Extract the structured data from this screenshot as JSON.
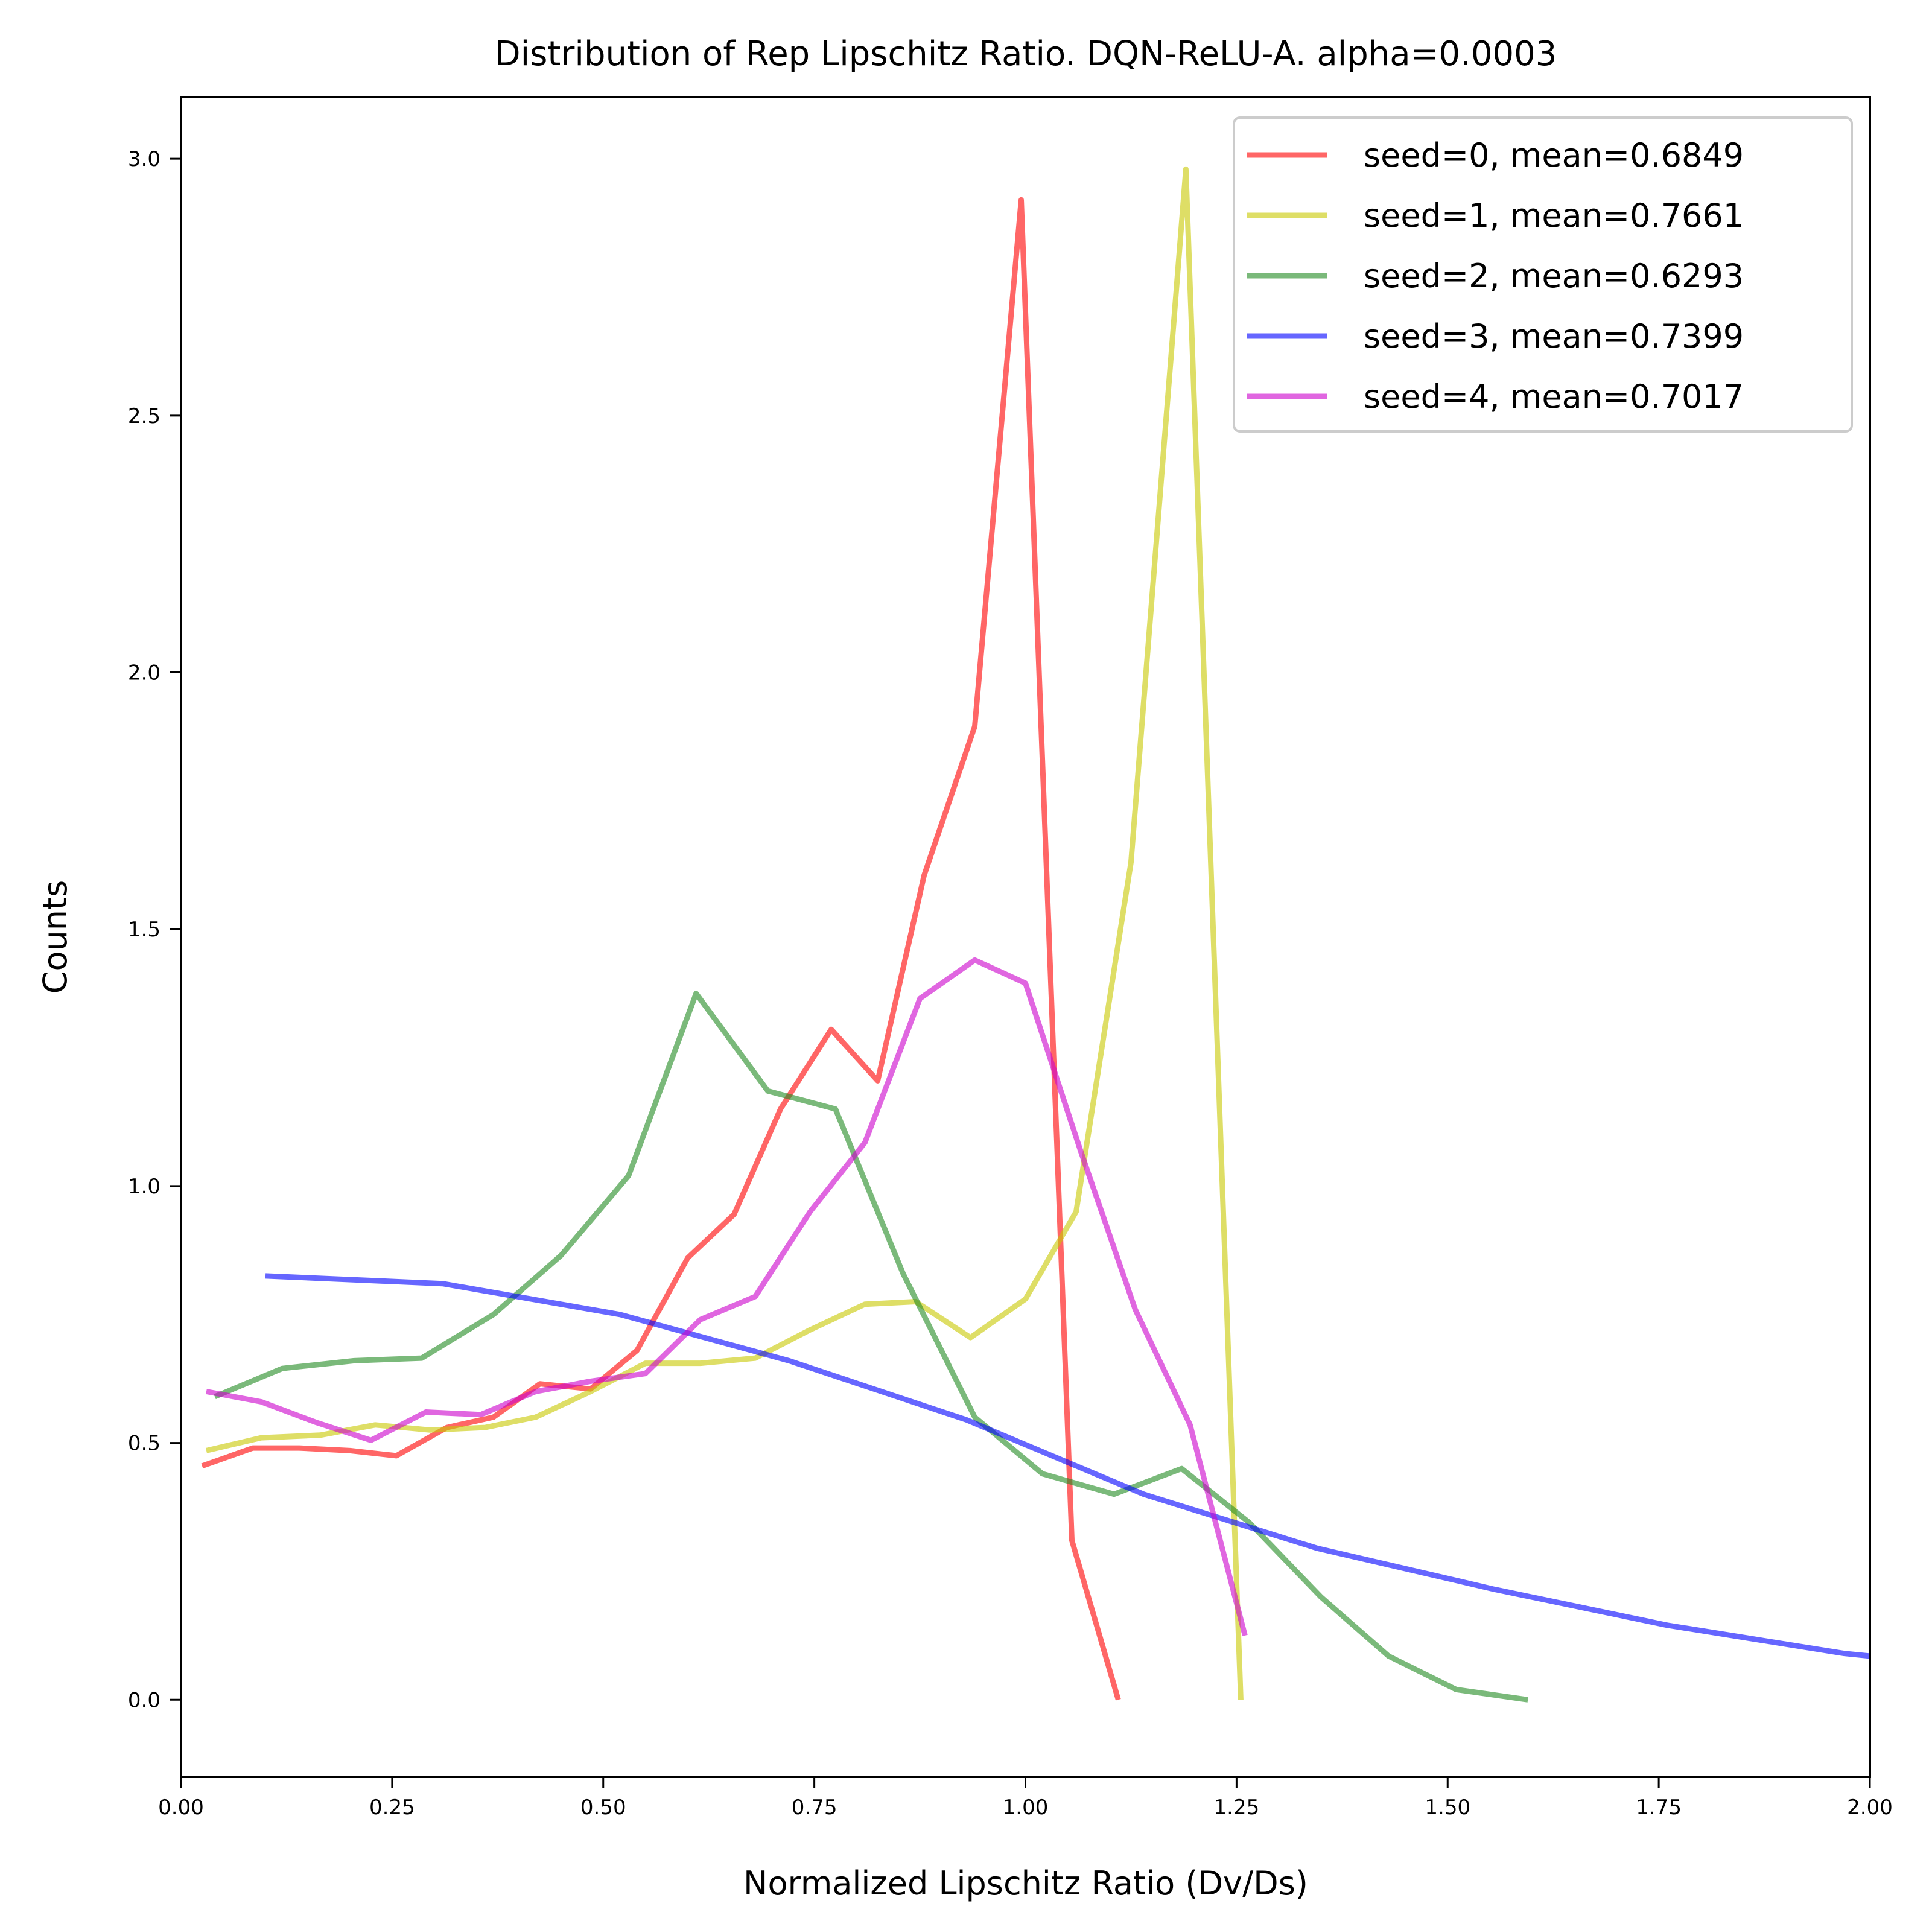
{
  "chart_data": {
    "type": "line",
    "title": "Distribution of Rep Lipschitz Ratio. DQN-ReLU-A. alpha=0.0003",
    "xlabel": "Normalized Lipschitz Ratio (Dv/Ds)",
    "ylabel": "Counts",
    "xlim": [
      0,
      2
    ],
    "ylim": [
      -0.15,
      3.12
    ],
    "x_ticks": [
      0,
      0.25,
      0.5,
      0.75,
      1.0,
      1.25,
      1.5,
      1.75,
      2.0
    ],
    "x_tick_labels": [
      "0.00",
      "0.25",
      "0.50",
      "0.75",
      "1.00",
      "1.25",
      "1.50",
      "1.75",
      "2.00"
    ],
    "y_ticks": [
      0,
      0.5,
      1.0,
      1.5,
      2.0,
      2.5,
      3.0
    ],
    "y_tick_labels": [
      "0.0",
      "0.5",
      "1.0",
      "1.5",
      "2.0",
      "2.5",
      "3.0"
    ],
    "grid": false,
    "legend_position": "top-right",
    "series": [
      {
        "name": "seed=0, mean=0.6849",
        "color": "#ff0000",
        "x": [
          0.025,
          0.085,
          0.14,
          0.2,
          0.255,
          0.315,
          0.37,
          0.425,
          0.485,
          0.54,
          0.6,
          0.655,
          0.71,
          0.77,
          0.825,
          0.88,
          0.94,
          0.995,
          1.055,
          1.11
        ],
        "y": [
          0.455,
          0.49,
          0.49,
          0.485,
          0.475,
          0.53,
          0.55,
          0.615,
          0.605,
          0.68,
          0.86,
          0.945,
          1.15,
          1.305,
          1.205,
          1.605,
          1.895,
          2.92,
          0.31,
          0.0
        ]
      },
      {
        "name": "seed=1, mean=0.7661",
        "color": "#c8c800",
        "x": [
          0.03,
          0.095,
          0.165,
          0.23,
          0.295,
          0.36,
          0.42,
          0.485,
          0.55,
          0.615,
          0.68,
          0.745,
          0.81,
          0.87,
          0.935,
          1.0,
          1.06,
          1.125,
          1.19,
          1.255
        ],
        "y": [
          0.485,
          0.51,
          0.515,
          0.535,
          0.525,
          0.53,
          0.55,
          0.6,
          0.655,
          0.655,
          0.665,
          0.72,
          0.77,
          0.775,
          0.705,
          0.78,
          0.95,
          1.63,
          2.98,
          0.0
        ]
      },
      {
        "name": "seed=2, mean=0.6293",
        "color": "#228b22",
        "x": [
          0.04,
          0.12,
          0.205,
          0.285,
          0.37,
          0.45,
          0.53,
          0.61,
          0.695,
          0.775,
          0.855,
          0.94,
          1.02,
          1.105,
          1.185,
          1.265,
          1.35,
          1.43,
          1.51,
          1.595
        ],
        "y": [
          0.59,
          0.645,
          0.66,
          0.665,
          0.75,
          0.865,
          1.02,
          1.375,
          1.185,
          1.15,
          0.83,
          0.55,
          0.44,
          0.4,
          0.45,
          0.345,
          0.2,
          0.085,
          0.02,
          0.0
        ]
      },
      {
        "name": "seed=3, mean=0.7399",
        "color": "#0000ff",
        "x": [
          0.1,
          0.31,
          0.52,
          0.72,
          0.93,
          1.14,
          1.345,
          1.555,
          1.76,
          1.97,
          2.0
        ],
        "y": [
          0.825,
          0.81,
          0.75,
          0.66,
          0.545,
          0.4,
          0.295,
          0.215,
          0.145,
          0.09,
          0.085
        ]
      },
      {
        "name": "seed=4, mean=0.7017",
        "color": "#cc00cc",
        "x": [
          0.03,
          0.095,
          0.16,
          0.225,
          0.29,
          0.355,
          0.42,
          0.485,
          0.55,
          0.615,
          0.68,
          0.745,
          0.81,
          0.875,
          0.94,
          1.0,
          1.065,
          1.13,
          1.195,
          1.26
        ],
        "y": [
          0.6,
          0.58,
          0.54,
          0.505,
          0.56,
          0.555,
          0.6,
          0.62,
          0.635,
          0.74,
          0.785,
          0.95,
          1.085,
          1.365,
          1.44,
          1.395,
          1.07,
          0.76,
          0.535,
          0.125
        ]
      }
    ]
  }
}
